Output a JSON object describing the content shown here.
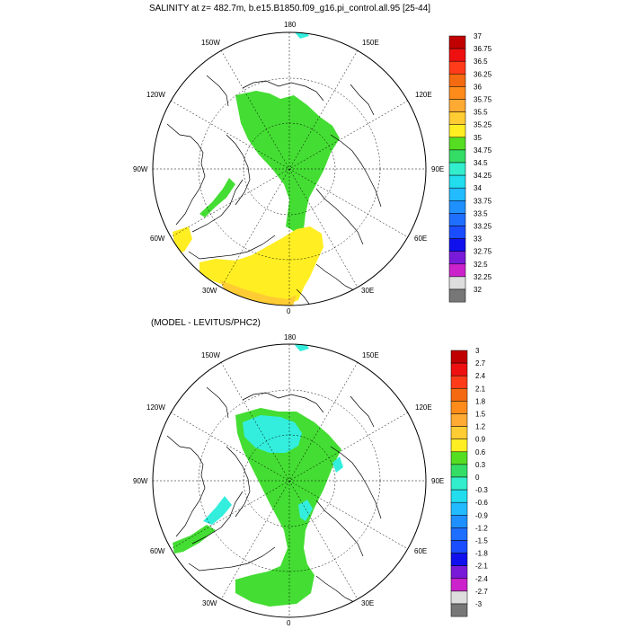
{
  "top_panel": {
    "title": "SALINITY at z= 482.7m, b.e15.B1850.f09_g16.pi_control.all.95 [25-44]",
    "lon_labels": {
      "top": "180",
      "bottom": "0",
      "left": "90W",
      "right": "90E",
      "ul": "150W",
      "ur": "150E",
      "ul2": "120W",
      "ur2": "120E",
      "ll": "60W",
      "lr": "60E",
      "ll2": "30W",
      "lr2": "30E"
    },
    "colorbar": {
      "labels": [
        "37",
        "36.75",
        "36.5",
        "36.25",
        "36",
        "35.75",
        "35.5",
        "35.25",
        "35",
        "34.75",
        "34.5",
        "34.25",
        "34",
        "33.75",
        "33.5",
        "33.25",
        "33",
        "32.75",
        "32.5",
        "32.25",
        "32"
      ],
      "colors": [
        "#c00000",
        "#ee1010",
        "#ff3b1a",
        "#f46a10",
        "#ff8c1a",
        "#ffaa33",
        "#ffcc33",
        "#ffee22",
        "#55dd22",
        "#33dd66",
        "#33eecc",
        "#22ddee",
        "#22bbff",
        "#1e90ff",
        "#1e6fff",
        "#1a4dff",
        "#1010ee",
        "#7a1ad9",
        "#cc22cc",
        "#dddddd",
        "#777777"
      ]
    }
  },
  "bottom_panel": {
    "title": "(MODEL - LEVITUS/PHC2)",
    "lon_labels": {
      "top": "180",
      "bottom": "0",
      "left": "90W",
      "right": "90E",
      "ul": "150W",
      "ur": "150E",
      "ul2": "120W",
      "ur2": "120E",
      "ll": "60W",
      "lr": "60E",
      "ll2": "30W",
      "lr2": "30E"
    },
    "colorbar": {
      "labels": [
        "3",
        "2.7",
        "2.4",
        "2.1",
        "1.8",
        "1.5",
        "1.2",
        "0.9",
        "0.6",
        "0.3",
        "0",
        "-0.3",
        "-0.6",
        "-0.9",
        "-1.2",
        "-1.5",
        "-1.8",
        "-2.1",
        "-2.4",
        "-2.7",
        "-3"
      ],
      "colors": [
        "#c00000",
        "#ee1010",
        "#ff3b1a",
        "#f46a10",
        "#ff8c1a",
        "#ffaa33",
        "#ffcc33",
        "#ffee22",
        "#55dd22",
        "#33dd66",
        "#33eecc",
        "#22ddee",
        "#22bbff",
        "#1e90ff",
        "#1e6fff",
        "#1a4dff",
        "#1010ee",
        "#7a1ad9",
        "#cc22cc",
        "#dddddd",
        "#777777"
      ]
    }
  },
  "fill_colors": {
    "green": "#44dd33",
    "yellow": "#ffee22",
    "orange": "#ffcc33",
    "cyan": "#33eedd",
    "cyan_dark": "#2ee0e0"
  }
}
